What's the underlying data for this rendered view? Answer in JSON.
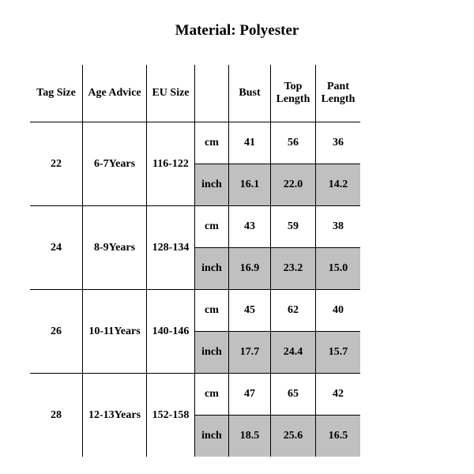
{
  "title": "Material: Polyester",
  "headers": {
    "tag": "Tag Size",
    "age": "Age Advice",
    "eu": "EU Size",
    "unit": "",
    "bust": "Bust",
    "top": "Top Length",
    "pant": "Pant Length"
  },
  "unit_cm": "cm",
  "unit_inch": "inch",
  "rows": [
    {
      "tag": "22",
      "age": "6-7Years",
      "eu": "116-122",
      "cm": {
        "bust": "41",
        "top": "56",
        "pant": "36"
      },
      "inch": {
        "bust": "16.1",
        "top": "22.0",
        "pant": "14.2"
      }
    },
    {
      "tag": "24",
      "age": "8-9Years",
      "eu": "128-134",
      "cm": {
        "bust": "43",
        "top": "59",
        "pant": "38"
      },
      "inch": {
        "bust": "16.9",
        "top": "23.2",
        "pant": "15.0"
      }
    },
    {
      "tag": "26",
      "age": "10-11Years",
      "eu": "140-146",
      "cm": {
        "bust": "45",
        "top": "62",
        "pant": "40"
      },
      "inch": {
        "bust": "17.7",
        "top": "24.4",
        "pant": "15.7"
      }
    },
    {
      "tag": "28",
      "age": "12-13Years",
      "eu": "152-158",
      "cm": {
        "bust": "47",
        "top": "65",
        "pant": "42"
      },
      "inch": {
        "bust": "18.5",
        "top": "25.6",
        "pant": "16.5"
      }
    }
  ],
  "colors": {
    "shaded": "#c0c0c0",
    "border": "#000000",
    "bg": "#ffffff"
  }
}
